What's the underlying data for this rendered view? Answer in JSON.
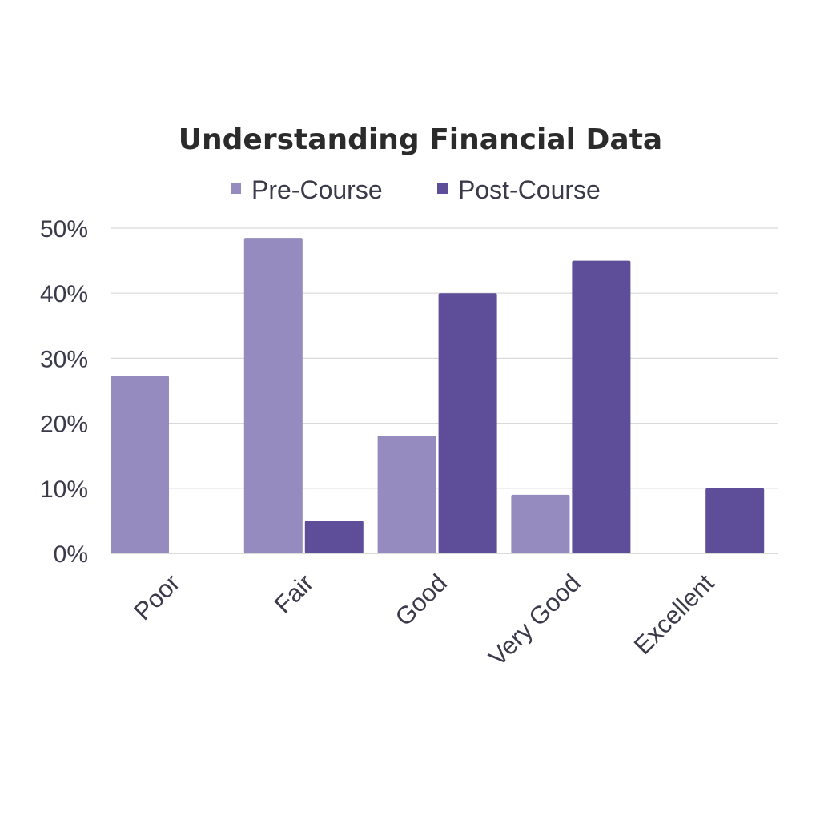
{
  "chart_data": {
    "type": "bar",
    "title": "Understanding Financial Data",
    "xlabel": "",
    "ylabel": "",
    "categories": [
      "Poor",
      "Fair",
      "Good",
      "Very Good",
      "Excellent"
    ],
    "series": [
      {
        "name": "Pre-Course",
        "color": "#958bbf",
        "values": [
          27.3,
          48.5,
          18.1,
          9.0,
          0
        ]
      },
      {
        "name": "Post-Course",
        "color": "#5e4d99",
        "values": [
          0,
          5.0,
          40.0,
          45.0,
          10.0
        ]
      }
    ],
    "ylim": [
      0,
      50
    ],
    "yticks": [
      0,
      10,
      20,
      30,
      40,
      50
    ],
    "ytick_labels": [
      "0%",
      "10%",
      "20%",
      "30%",
      "40%",
      "50%"
    ],
    "grid": true,
    "legend_position": "top-center"
  }
}
